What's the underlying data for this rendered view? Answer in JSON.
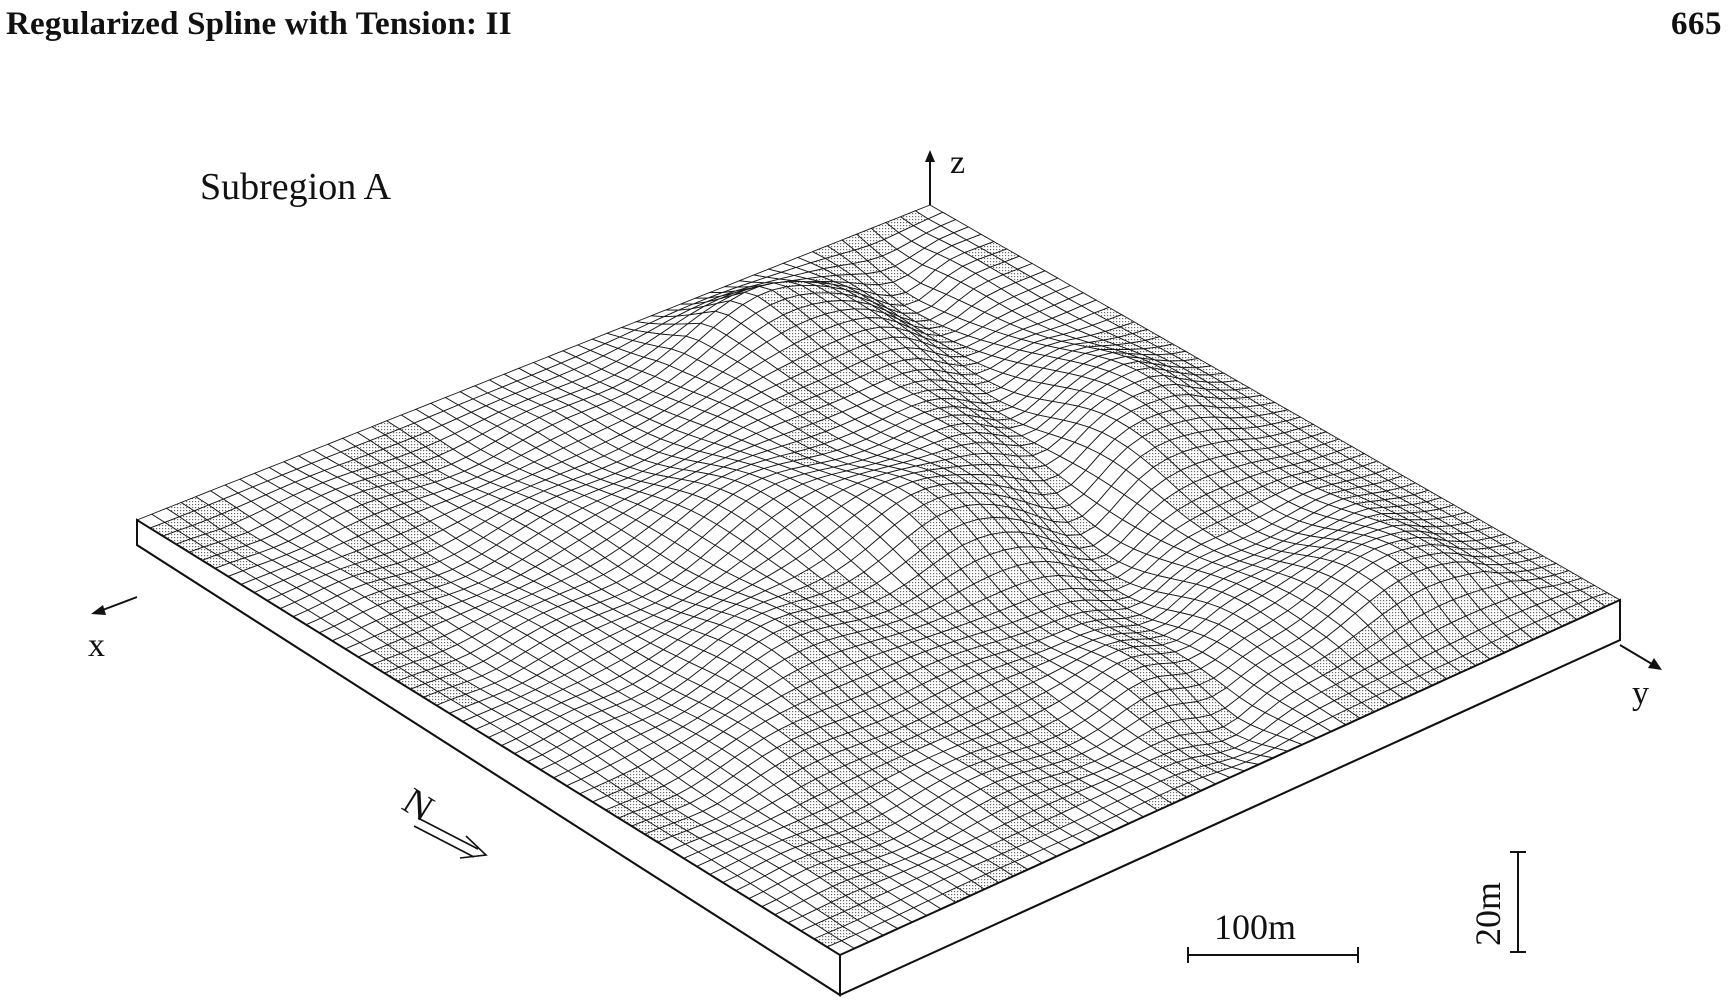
{
  "header": {
    "running_title": "Regularized Spline with Tension: II",
    "page_number": "665"
  },
  "figure": {
    "subregion_label": "Subregion A",
    "axes": {
      "x": "x",
      "y": "y",
      "z": "z"
    },
    "north_label": "N",
    "horizontal_scale_label": "100m",
    "vertical_scale_label": "20m"
  }
}
